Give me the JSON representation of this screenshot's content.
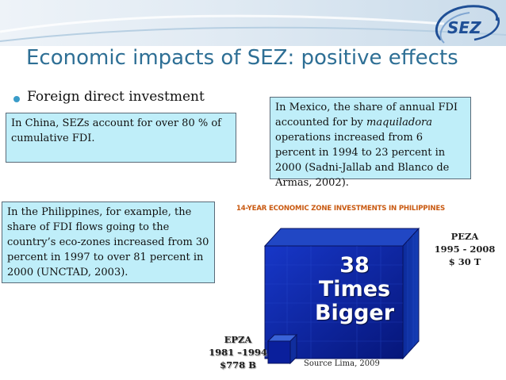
{
  "slide": {
    "title": "Economic impacts of SEZ: positive effects",
    "bullet": "Foreign direct investment",
    "logo_text": "SEZ",
    "boxes": {
      "china": "In China, SEZs account for over 80 % of cumulative FDI.",
      "mexico": {
        "before": "In Mexico, the share of annual FDI accounted for by ",
        "italic": "maquiladora",
        "after": " operations increased from 6 percent in 1994 to 23 percent in 2000 (Sadni-Jallab and Blanco de Armas, 2002)."
      },
      "philippines": "In the Philippines, for example, the share of FDI flows going to the country’s eco-zones increased from 30 percent in 1997 to over 81 percent in 2000 (UNCTAD, 2003)."
    },
    "chart": {
      "title": "14-YEAR ECONOMIC ZONE INVESTMENTS IN PHILIPPINES",
      "big_text": [
        "38",
        "Times",
        "Bigger"
      ],
      "peza": [
        "PEZA",
        "1995 - 2008",
        "$ 30 T"
      ],
      "epza": [
        "EPZA",
        "1981 –1994",
        "$778 B"
      ],
      "source": "Source Lima, 2009"
    },
    "colors": {
      "title": "#2e6f95",
      "box_fill": "#bfeef9",
      "chart_title": "#c95a12",
      "cube_front": "#0a1f9c",
      "cube_side": "#0d2f98"
    }
  },
  "chart_data": {
    "type": "bar",
    "title": "14-YEAR ECONOMIC ZONE INVESTMENTS IN PHILIPPINES",
    "categories": [
      "EPZA 1981 –1994",
      "PEZA 1995 - 2008"
    ],
    "value_labels": [
      "$778 B",
      "$ 30 T"
    ],
    "annotation": "38 Times Bigger",
    "source": "Source Lima, 2009"
  }
}
